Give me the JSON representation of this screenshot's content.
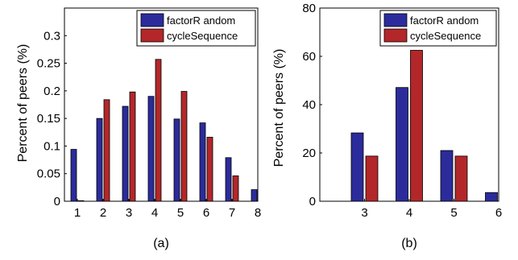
{
  "chart_data": [
    {
      "type": "bar",
      "caption": "(a)",
      "ylabel": "Percent of peers (%)",
      "xlabel": "",
      "xlim": [
        0.5,
        8
      ],
      "ylim": [
        0,
        0.35
      ],
      "x_ticks": [
        "1",
        "2",
        "3",
        "4",
        "5",
        "6",
        "7",
        "8"
      ],
      "y_ticks": [
        "0",
        "0.05",
        "0.1",
        "0.15",
        "0.2",
        "0.25",
        "0.3"
      ],
      "y_tick_values": [
        0,
        0.05,
        0.1,
        0.15,
        0.2,
        0.25,
        0.3
      ],
      "categories": [
        1,
        2,
        3,
        4,
        5,
        6,
        7,
        8
      ],
      "legend_position": "top-right",
      "grid": false,
      "series": [
        {
          "name": "factorR andom",
          "color": "#2b2b9c",
          "values": [
            0.094,
            0.15,
            0.172,
            0.19,
            0.149,
            0.142,
            0.079,
            0.021
          ]
        },
        {
          "name": "cycleSequence",
          "color": "#b3272a",
          "values": [
            0.001,
            0.184,
            0.198,
            0.257,
            0.199,
            0.116,
            0.046,
            null
          ]
        }
      ]
    },
    {
      "type": "bar",
      "caption": "(b)",
      "ylabel": "Percent of peers (%)",
      "xlabel": "",
      "xlim": [
        2,
        6
      ],
      "ylim": [
        0,
        80
      ],
      "x_ticks": [
        "3",
        "4",
        "5",
        "6"
      ],
      "y_ticks": [
        "0",
        "20",
        "40",
        "60",
        "80"
      ],
      "y_tick_values": [
        0,
        20,
        40,
        60,
        80
      ],
      "categories": [
        3,
        4,
        5,
        6
      ],
      "legend_position": "top-right",
      "grid": false,
      "series": [
        {
          "name": "factorR andom",
          "color": "#2b2b9c",
          "values": [
            28.3,
            47.1,
            21.0,
            3.6
          ]
        },
        {
          "name": "cycleSequence",
          "color": "#b3272a",
          "values": [
            18.7,
            62.5,
            18.7,
            null
          ]
        }
      ]
    }
  ]
}
